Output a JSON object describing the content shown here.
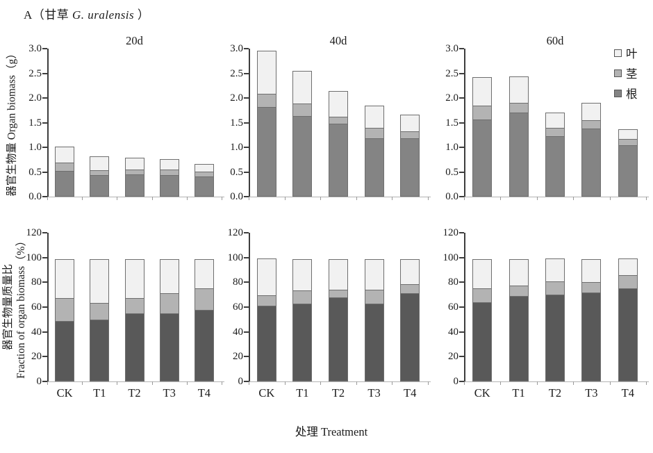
{
  "figure_title": {
    "prefix": "A（甘草 ",
    "species": "G. uralensis",
    "suffix": " ）"
  },
  "xlabel": "处理 Treatment",
  "legend": [
    {
      "key": "leaf",
      "label": "叶"
    },
    {
      "key": "stem",
      "label": "茎"
    },
    {
      "key": "root",
      "label": "根"
    }
  ],
  "colors": {
    "leaf": "#f1f1f1",
    "stem": "#b3b3b3",
    "root": "#848484",
    "root_fraction": "#595959",
    "segment_border": "#6e6e6e",
    "axis": "#3d3d3d",
    "baseline": "#b3b3b3",
    "minor_tick": "#9a9a9a",
    "legend_border": "#555555"
  },
  "rows": [
    {
      "ylabel": "器官生物量 Organ biomass（g）",
      "ymax": 3.0,
      "yticks": [
        "3.0",
        "2.5",
        "2.0",
        "1.5",
        "1.0",
        "0.5",
        "0.0"
      ],
      "show_titles": true,
      "show_categories": false
    },
    {
      "ylabel_zh": "器官生物量质量比",
      "ylabel_en": "Fraction of organ biomass（%）",
      "ymax": 120,
      "yticks": [
        "120",
        "100",
        "80",
        "60",
        "40",
        "20",
        "0"
      ],
      "show_titles": false,
      "show_categories": true
    }
  ],
  "categories": [
    "CK",
    "T1",
    "T2",
    "T3",
    "T4"
  ],
  "chart_data": [
    {
      "id": "biomass-20d",
      "type": "bar",
      "stacked": true,
      "row": 0,
      "col": 0,
      "title": "20d",
      "ylabel": "器官生物量 Organ biomass（g）",
      "ylim": [
        0,
        3.0
      ],
      "categories": [
        "CK",
        "T1",
        "T2",
        "T3",
        "T4"
      ],
      "series": [
        {
          "key": "root",
          "name": "根",
          "values": [
            0.52,
            0.43,
            0.45,
            0.43,
            0.41
          ]
        },
        {
          "key": "stem",
          "name": "茎",
          "values": [
            0.18,
            0.11,
            0.11,
            0.12,
            0.11
          ]
        },
        {
          "key": "leaf",
          "name": "叶",
          "values": [
            0.34,
            0.3,
            0.25,
            0.22,
            0.17
          ]
        }
      ]
    },
    {
      "id": "biomass-40d",
      "type": "bar",
      "stacked": true,
      "row": 0,
      "col": 1,
      "title": "40d",
      "ylabel": "器官生物量 Organ biomass（g）",
      "ylim": [
        0,
        3.0
      ],
      "categories": [
        "CK",
        "T1",
        "T2",
        "T3",
        "T4"
      ],
      "series": [
        {
          "key": "root",
          "name": "根",
          "values": [
            1.82,
            1.63,
            1.48,
            1.19,
            1.19
          ]
        },
        {
          "key": "stem",
          "name": "茎",
          "values": [
            0.28,
            0.27,
            0.16,
            0.22,
            0.15
          ]
        },
        {
          "key": "leaf",
          "name": "叶",
          "values": [
            0.89,
            0.68,
            0.53,
            0.47,
            0.35
          ]
        }
      ]
    },
    {
      "id": "biomass-60d",
      "type": "bar",
      "stacked": true,
      "row": 0,
      "col": 2,
      "title": "60d",
      "ylabel": "器官生物量 Organ biomass（g）",
      "ylim": [
        0,
        3.0
      ],
      "categories": [
        "CK",
        "T1",
        "T2",
        "T3",
        "T4"
      ],
      "series": [
        {
          "key": "root",
          "name": "根",
          "values": [
            1.56,
            1.7,
            1.22,
            1.38,
            1.04
          ]
        },
        {
          "key": "stem",
          "name": "茎",
          "values": [
            0.29,
            0.21,
            0.19,
            0.18,
            0.14
          ]
        },
        {
          "key": "leaf",
          "name": "叶",
          "values": [
            0.59,
            0.55,
            0.33,
            0.37,
            0.21
          ]
        }
      ]
    },
    {
      "id": "fraction-20d",
      "type": "bar",
      "stacked": true,
      "row": 1,
      "col": 0,
      "title": "20d",
      "ylabel": "器官生物量质量比 Fraction of organ biomass（%）",
      "ylim": [
        0,
        120
      ],
      "categories": [
        "CK",
        "T1",
        "T2",
        "T3",
        "T4"
      ],
      "series": [
        {
          "key": "root",
          "name": "根",
          "values": [
            49,
            50,
            55,
            55,
            58
          ]
        },
        {
          "key": "stem",
          "name": "茎",
          "values": [
            19,
            14,
            13,
            17,
            18
          ]
        },
        {
          "key": "leaf",
          "name": "叶",
          "values": [
            32,
            36,
            32,
            28,
            24
          ]
        }
      ]
    },
    {
      "id": "fraction-40d",
      "type": "bar",
      "stacked": true,
      "row": 1,
      "col": 1,
      "title": "40d",
      "ylabel": "器官生物量质量比 Fraction of organ biomass（%）",
      "ylim": [
        0,
        120
      ],
      "categories": [
        "CK",
        "T1",
        "T2",
        "T3",
        "T4"
      ],
      "series": [
        {
          "key": "root",
          "name": "根",
          "values": [
            61,
            63,
            68,
            63,
            71
          ]
        },
        {
          "key": "stem",
          "name": "茎",
          "values": [
            9,
            11,
            7,
            12,
            8
          ]
        },
        {
          "key": "leaf",
          "name": "叶",
          "values": [
            30,
            26,
            25,
            25,
            21
          ]
        }
      ]
    },
    {
      "id": "fraction-60d",
      "type": "bar",
      "stacked": true,
      "row": 1,
      "col": 2,
      "title": "60d",
      "ylabel": "器官生物量质量比 Fraction of organ biomass（%）",
      "ylim": [
        0,
        120
      ],
      "categories": [
        "CK",
        "T1",
        "T2",
        "T3",
        "T4"
      ],
      "series": [
        {
          "key": "root",
          "name": "根",
          "values": [
            64,
            69,
            70,
            72,
            75
          ]
        },
        {
          "key": "stem",
          "name": "茎",
          "values": [
            12,
            9,
            11,
            9,
            11
          ]
        },
        {
          "key": "leaf",
          "name": "叶",
          "values": [
            24,
            22,
            19,
            19,
            14
          ]
        }
      ]
    }
  ]
}
